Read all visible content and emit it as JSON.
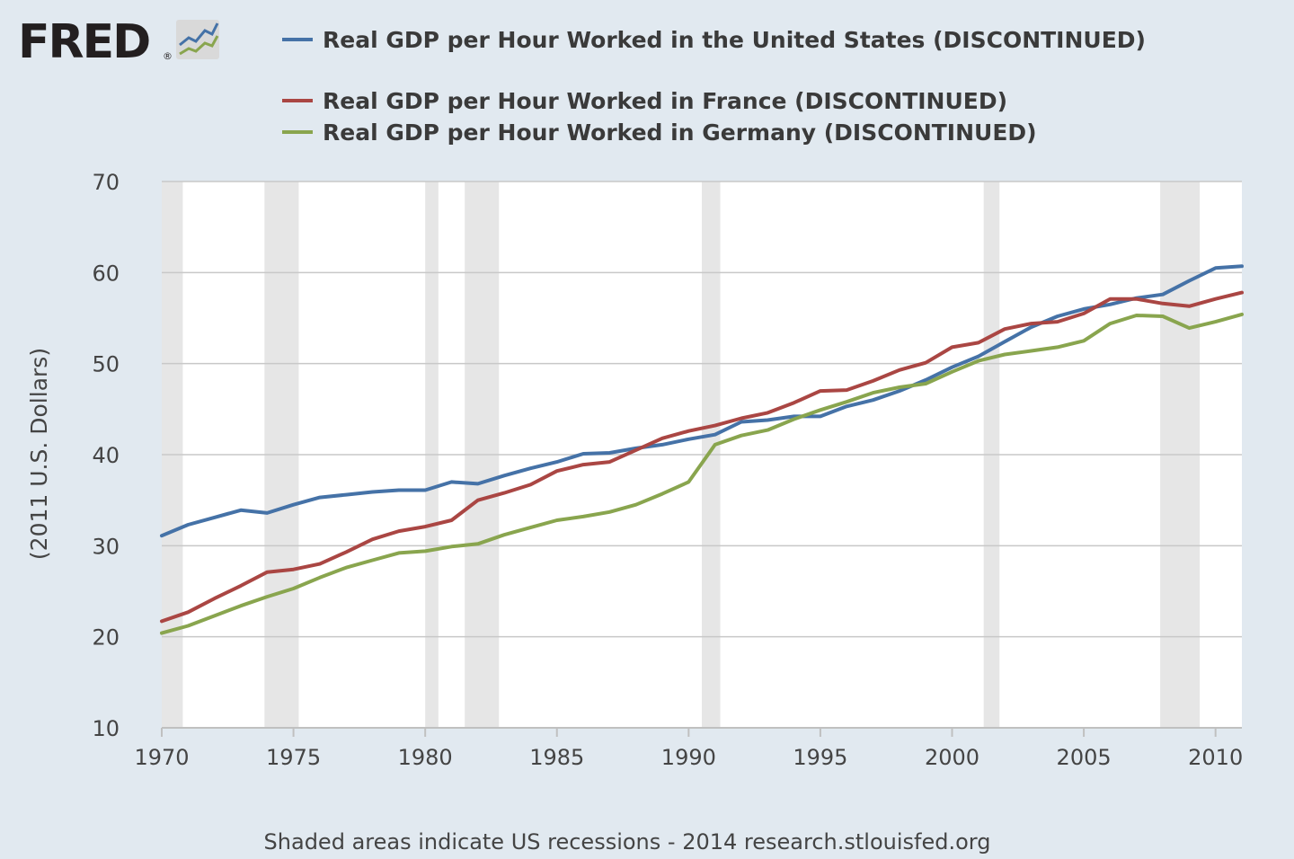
{
  "logo": {
    "text": "FRED",
    "registered": "®",
    "icon": "line-chart-icon"
  },
  "colors": {
    "background": "#e1e9f0",
    "plot_background": "#ffffff",
    "gridline": "#c8c8c8",
    "recession_shade": "#e6e6e6",
    "us": "#4572a7",
    "france": "#aa4643",
    "germany": "#89a54e"
  },
  "footer": "Shaded areas indicate US recessions - 2014 research.stlouisfed.org",
  "chart_data": {
    "type": "line",
    "title": "",
    "xlabel": "",
    "ylabel": "(2011 U.S. Dollars)",
    "xlim": [
      1970,
      2011
    ],
    "ylim": [
      10,
      70
    ],
    "x_ticks": [
      1970,
      1975,
      1980,
      1985,
      1990,
      1995,
      2000,
      2005,
      2010
    ],
    "y_ticks": [
      10,
      20,
      30,
      40,
      50,
      60,
      70
    ],
    "grid": true,
    "legend_position": "top",
    "recessions": [
      [
        1970.0,
        1970.8
      ],
      [
        1973.9,
        1975.2
      ],
      [
        1980.0,
        1980.5
      ],
      [
        1981.5,
        1982.8
      ],
      [
        1990.5,
        1991.2
      ],
      [
        2001.2,
        2001.8
      ],
      [
        2007.9,
        2009.4
      ]
    ],
    "x": [
      1970,
      1971,
      1972,
      1973,
      1974,
      1975,
      1976,
      1977,
      1978,
      1979,
      1980,
      1981,
      1982,
      1983,
      1984,
      1985,
      1986,
      1987,
      1988,
      1989,
      1990,
      1991,
      1992,
      1993,
      1994,
      1995,
      1996,
      1997,
      1998,
      1999,
      2000,
      2001,
      2002,
      2003,
      2004,
      2005,
      2006,
      2007,
      2008,
      2009,
      2010,
      2011
    ],
    "series": [
      {
        "name": "Real GDP per Hour Worked in the United States (DISCONTINUED)",
        "color": "#4572a7",
        "values": [
          31.1,
          32.3,
          33.1,
          33.9,
          33.6,
          34.5,
          35.3,
          35.6,
          35.9,
          36.1,
          36.1,
          37.0,
          36.8,
          37.7,
          38.5,
          39.2,
          40.1,
          40.2,
          40.7,
          41.1,
          41.7,
          42.2,
          43.6,
          43.8,
          44.2,
          44.2,
          45.3,
          46.0,
          47.0,
          48.2,
          49.6,
          50.8,
          52.4,
          54.0,
          55.2,
          56.0,
          56.5,
          57.2,
          57.6,
          59.1,
          60.5,
          60.7
        ]
      },
      {
        "name": "Real GDP per Hour Worked in France (DISCONTINUED)",
        "color": "#aa4643",
        "values": [
          21.7,
          22.7,
          24.2,
          25.6,
          27.1,
          27.4,
          28.0,
          29.3,
          30.7,
          31.6,
          32.1,
          32.8,
          35.0,
          35.8,
          36.7,
          38.2,
          38.9,
          39.2,
          40.5,
          41.8,
          42.6,
          43.2,
          44.0,
          44.6,
          45.7,
          47.0,
          47.1,
          48.1,
          49.3,
          50.1,
          51.8,
          52.3,
          53.8,
          54.4,
          54.6,
          55.5,
          57.1,
          57.1,
          56.6,
          56.3,
          57.1,
          57.8
        ]
      },
      {
        "name": "Real GDP per Hour Worked in Germany (DISCONTINUED)",
        "color": "#89a54e",
        "values": [
          20.4,
          21.2,
          22.3,
          23.4,
          24.4,
          25.3,
          26.5,
          27.6,
          28.4,
          29.2,
          29.4,
          29.9,
          30.2,
          31.2,
          32.0,
          32.8,
          33.2,
          33.7,
          34.5,
          35.7,
          37.0,
          41.1,
          42.1,
          42.7,
          43.9,
          44.9,
          45.8,
          46.8,
          47.4,
          47.8,
          49.1,
          50.3,
          51.0,
          51.4,
          51.8,
          52.5,
          54.4,
          55.3,
          55.2,
          53.9,
          54.6,
          55.4
        ]
      }
    ]
  }
}
